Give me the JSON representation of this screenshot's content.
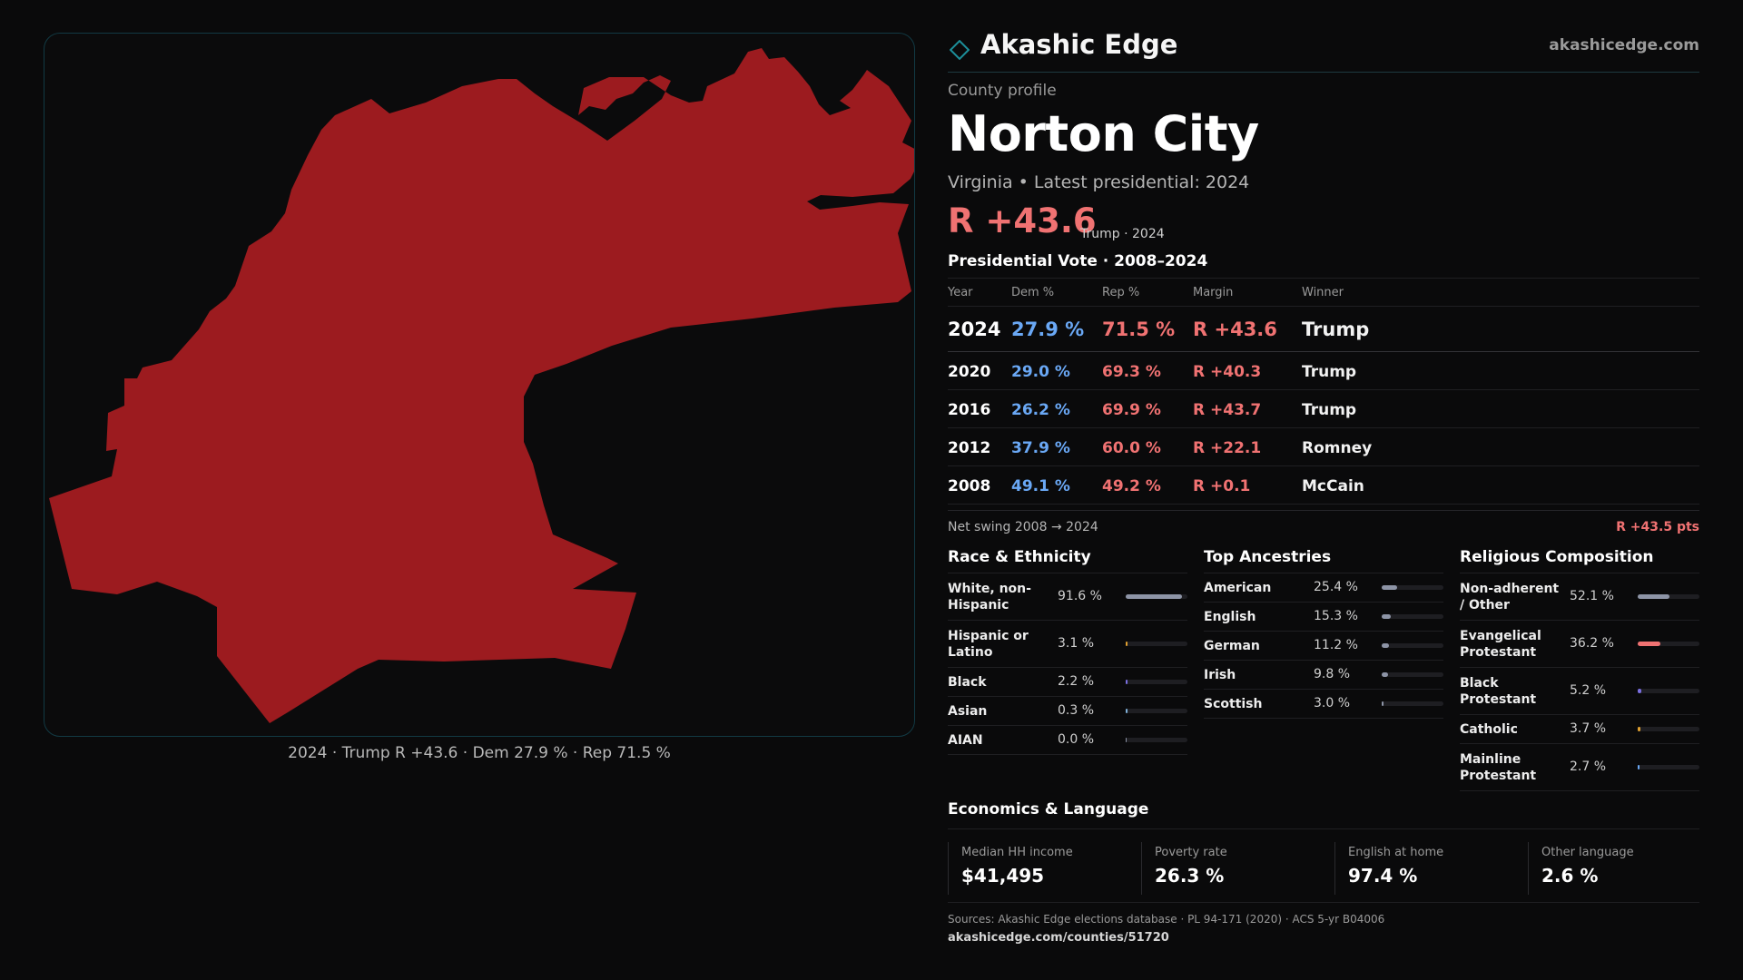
{
  "brand": {
    "name": "Akashic Edge",
    "url": "akashicedge.com",
    "icon": "diamond-outline-icon",
    "accent": "#1d8f9a"
  },
  "profile": {
    "kicker": "County profile",
    "title": "Norton City",
    "subtitle": "Virginia • Latest presidential: 2024",
    "headline_margin": "R +43.6",
    "headline_note": "Trump · 2024",
    "map_caption": "2024 · Trump R +43.6 · Dem 27.9 % · Rep 71.5 %",
    "map_fill": "#9c1b1f"
  },
  "vote": {
    "section_title": "Presidential Vote · 2008–2024",
    "columns": [
      "Year",
      "Dem %",
      "Rep %",
      "Margin",
      "Winner"
    ],
    "rows": [
      {
        "year": "2024",
        "dem": "27.9 %",
        "rep": "71.5 %",
        "margin": "R +43.6",
        "winner": "Trump"
      },
      {
        "year": "2020",
        "dem": "29.0 %",
        "rep": "69.3 %",
        "margin": "R +40.3",
        "winner": "Trump"
      },
      {
        "year": "2016",
        "dem": "26.2 %",
        "rep": "69.9 %",
        "margin": "R +43.7",
        "winner": "Trump"
      },
      {
        "year": "2012",
        "dem": "37.9 %",
        "rep": "60.0 %",
        "margin": "R +22.1",
        "winner": "Romney"
      },
      {
        "year": "2008",
        "dem": "49.1 %",
        "rep": "49.2 %",
        "margin": "R +0.1",
        "winner": "McCain"
      }
    ],
    "swing_label": "Net swing 2008 → 2024",
    "swing_value": "R +43.5 pts",
    "dem_color": "#6aa8f5",
    "rep_color": "#f07272"
  },
  "race": {
    "title": "Race & Ethnicity",
    "items": [
      {
        "label": "White, non-Hispanic",
        "pct": "91.6 %",
        "share": 0.916,
        "color": "#8d94a6"
      },
      {
        "label": "Hispanic or Latino",
        "pct": "3.1 %",
        "share": 0.031,
        "color": "#e0a030"
      },
      {
        "label": "Black",
        "pct": "2.2 %",
        "share": 0.022,
        "color": "#7a6fe0"
      },
      {
        "label": "Asian",
        "pct": "0.3 %",
        "share": 0.003,
        "color": "#7fb0d8"
      },
      {
        "label": "AIAN",
        "pct": "0.0 %",
        "share": 0.0,
        "color": "#8d94a6"
      }
    ]
  },
  "ancestry": {
    "title": "Top Ancestries",
    "items": [
      {
        "label": "American",
        "pct": "25.4 %",
        "share": 0.254,
        "color": "#8d94a6"
      },
      {
        "label": "English",
        "pct": "15.3 %",
        "share": 0.153,
        "color": "#8d94a6"
      },
      {
        "label": "German",
        "pct": "11.2 %",
        "share": 0.112,
        "color": "#8d94a6"
      },
      {
        "label": "Irish",
        "pct": "9.8 %",
        "share": 0.098,
        "color": "#8d94a6"
      },
      {
        "label": "Scottish",
        "pct": "3.0 %",
        "share": 0.03,
        "color": "#8d94a6"
      }
    ]
  },
  "religion": {
    "title": "Religious Composition",
    "items": [
      {
        "label": "Non-adherent / Other",
        "pct": "52.1 %",
        "share": 0.521,
        "color": "#8d94a6"
      },
      {
        "label": "Evangelical Protestant",
        "pct": "36.2 %",
        "share": 0.362,
        "color": "#f07272"
      },
      {
        "label": "Black Protestant",
        "pct": "5.2 %",
        "share": 0.052,
        "color": "#7a6fe0"
      },
      {
        "label": "Catholic",
        "pct": "3.7 %",
        "share": 0.037,
        "color": "#e0a030"
      },
      {
        "label": "Mainline Protestant",
        "pct": "2.7 %",
        "share": 0.027,
        "color": "#6aa8f5"
      }
    ]
  },
  "economics": {
    "title": "Economics & Language",
    "cells": [
      {
        "label": "Median HH income",
        "value": "$41,495"
      },
      {
        "label": "Poverty rate",
        "value": "26.3 %"
      },
      {
        "label": "English at home",
        "value": "97.4 %"
      },
      {
        "label": "Other language",
        "value": "2.6 %"
      }
    ]
  },
  "footer": {
    "sources": "Sources: Akashic Edge elections database · PL 94-171 (2020) · ACS 5-yr B04006",
    "url": "akashicedge.com/counties/51720"
  }
}
